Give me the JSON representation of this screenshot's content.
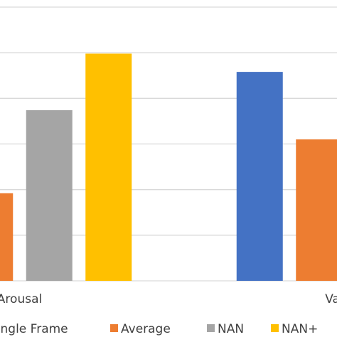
{
  "chart_data": {
    "type": "bar",
    "categories": [
      "Arousal",
      "Valence"
    ],
    "series": [
      {
        "name": "Single Frame",
        "color": "#4472c4",
        "values": [
          null,
          4.58
        ]
      },
      {
        "name": "Average",
        "color": "#ed7d31",
        "values": [
          1.92,
          3.1
        ]
      },
      {
        "name": "NAN",
        "color": "#a5a5a5",
        "values": [
          3.74,
          null
        ]
      },
      {
        "name": "NAN+",
        "color": "#ffc000",
        "values": [
          4.98,
          null
        ]
      }
    ],
    "ylim": [
      0,
      6
    ],
    "yticks": [
      0,
      1,
      2,
      3,
      4,
      5,
      6
    ],
    "grid": true,
    "legend": "bottom"
  }
}
